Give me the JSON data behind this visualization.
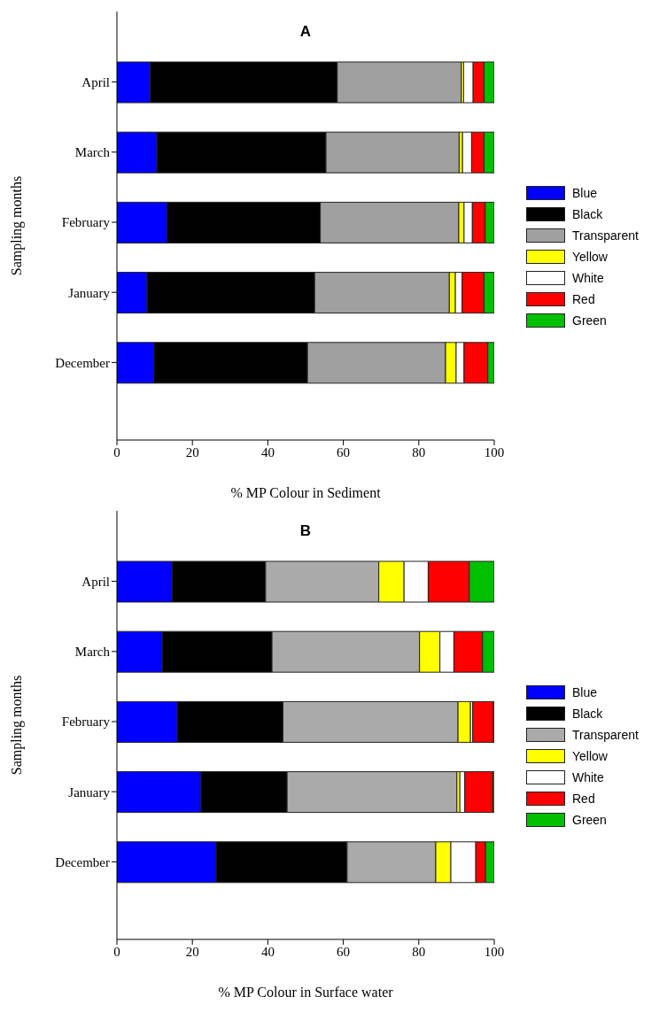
{
  "chart_data": [
    {
      "type": "bar",
      "orientation": "horizontal",
      "stacked": true,
      "title": "A",
      "xlabel": "% MP Colour in Sediment",
      "ylabel": "Sampling months",
      "categories": [
        "April",
        "March",
        "February",
        "January",
        "December"
      ],
      "xlim": [
        0,
        100
      ],
      "xticks": [
        0,
        20,
        40,
        60,
        80,
        100
      ],
      "legend": "right",
      "grid": false,
      "series": [
        {
          "name": "Blue",
          "color": "#0000ff",
          "values": [
            8.9,
            10.6,
            13.3,
            8.0,
            9.8
          ]
        },
        {
          "name": "Black",
          "color": "#000000",
          "values": [
            49.5,
            44.8,
            40.6,
            44.4,
            40.7
          ]
        },
        {
          "name": "Transparent",
          "color": "#a0a0a0",
          "values": [
            32.9,
            35.3,
            36.7,
            35.7,
            36.6
          ]
        },
        {
          "name": "Yellow",
          "color": "#ffff00",
          "values": [
            0.6,
            0.9,
            1.4,
            1.6,
            2.8
          ]
        },
        {
          "name": "White",
          "color": "#ffffff",
          "values": [
            2.5,
            2.4,
            2.2,
            1.8,
            2.1
          ]
        },
        {
          "name": "Red",
          "color": "#ff0000",
          "values": [
            2.9,
            3.3,
            3.4,
            5.8,
            6.3
          ]
        },
        {
          "name": "Green",
          "color": "#00c000",
          "values": [
            2.7,
            2.7,
            2.4,
            2.7,
            1.7
          ]
        }
      ]
    },
    {
      "type": "bar",
      "orientation": "horizontal",
      "stacked": true,
      "title": "B",
      "xlabel": "% MP Colour in Surface water",
      "ylabel": "Sampling months",
      "categories": [
        "April",
        "March",
        "February",
        "January",
        "December"
      ],
      "xlim": [
        0,
        100
      ],
      "xticks": [
        0,
        20,
        40,
        60,
        80,
        100
      ],
      "legend": "right",
      "grid": false,
      "series": [
        {
          "name": "Blue",
          "color": "#0000ff",
          "values": [
            14.7,
            12.1,
            16.0,
            22.3,
            26.3
          ]
        },
        {
          "name": "Black",
          "color": "#000000",
          "values": [
            24.7,
            29.0,
            28.0,
            22.8,
            34.7
          ]
        },
        {
          "name": "Transparent",
          "color": "#aaaaaa",
          "values": [
            30.0,
            39.1,
            46.4,
            45.0,
            23.5
          ]
        },
        {
          "name": "Yellow",
          "color": "#ffff00",
          "values": [
            6.7,
            5.4,
            3.3,
            0.8,
            4.0
          ]
        },
        {
          "name": "White",
          "color": "#ffffff",
          "values": [
            6.4,
            3.7,
            0.6,
            1.3,
            6.6
          ]
        },
        {
          "name": "Red",
          "color": "#ff0000",
          "values": [
            10.9,
            7.6,
            5.5,
            7.4,
            2.6
          ]
        },
        {
          "name": "Green",
          "color": "#00c000",
          "values": [
            6.6,
            3.1,
            0.2,
            0.4,
            2.3
          ]
        }
      ]
    }
  ]
}
